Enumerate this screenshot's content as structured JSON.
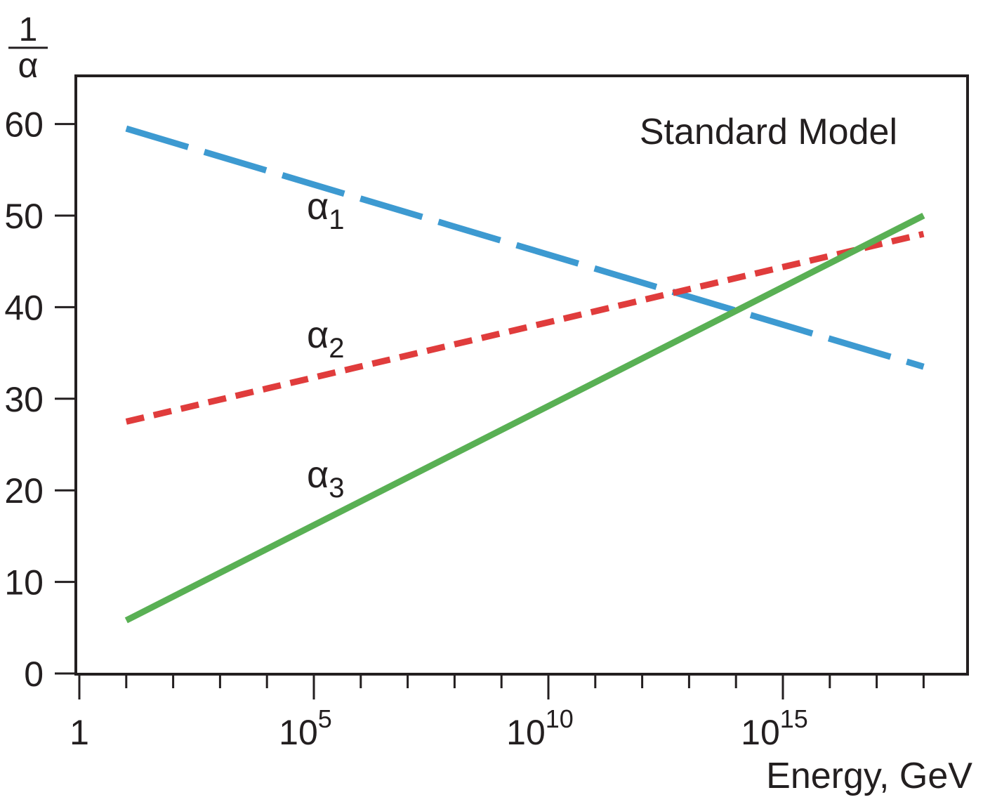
{
  "chart_data": {
    "type": "line",
    "title": "Standard Model",
    "xlabel": "Energy, GeV",
    "ylabel": {
      "numerator": "1",
      "denominator": "α"
    },
    "x_scale": "log",
    "xlim_log10": [
      0,
      18
    ],
    "ylim": [
      0,
      60
    ],
    "yticks": [
      0,
      10,
      20,
      30,
      40,
      50,
      60
    ],
    "xticks": [
      {
        "log10": 0,
        "base": "1",
        "exp": ""
      },
      {
        "log10": 5,
        "base": "10",
        "exp": "5"
      },
      {
        "log10": 10,
        "base": "10",
        "exp": "10"
      },
      {
        "log10": 15,
        "base": "10",
        "exp": "15"
      }
    ],
    "grid": false,
    "series": [
      {
        "name": "α1",
        "sym": "α",
        "sub": "1",
        "color": "#3d9ad1",
        "style": "long-dash",
        "x_log10": [
          1,
          18
        ],
        "y": [
          59.5,
          33.5
        ]
      },
      {
        "name": "α2",
        "sym": "α",
        "sub": "2",
        "color": "#e03c3c",
        "style": "short-dash",
        "x_log10": [
          1,
          18
        ],
        "y": [
          27.5,
          48
        ]
      },
      {
        "name": "α3",
        "sym": "α",
        "sub": "3",
        "color": "#59b054",
        "style": "solid",
        "x_log10": [
          1,
          18
        ],
        "y": [
          5.8,
          50
        ]
      }
    ]
  }
}
